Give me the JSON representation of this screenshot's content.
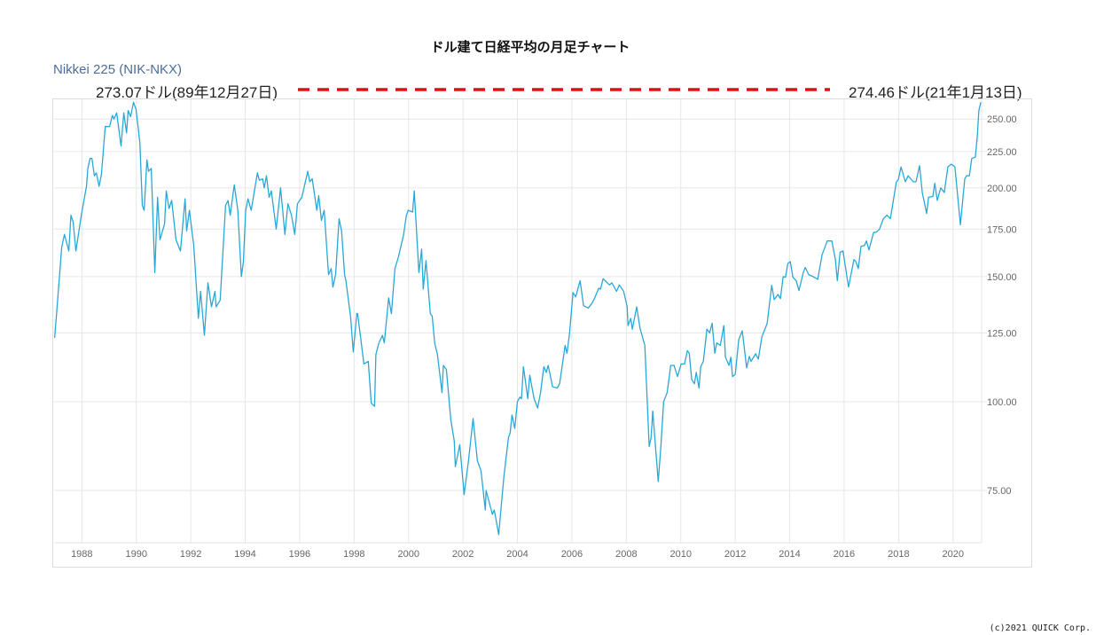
{
  "chart_data": {
    "type": "line",
    "title": "ドル建て日経平均の月足チャート",
    "series_label": "Nikkei 225 (NIK-NKX)",
    "y_scale": "log",
    "ylim": [
      63.3,
      266.5
    ],
    "xlim": [
      1986.98,
      2021.05
    ],
    "grid": true,
    "line_color": "#29a8d8",
    "reference_line_color": "#dd1111",
    "x_ticks": [
      "1988",
      "1990",
      "1992",
      "1994",
      "1996",
      "1998",
      "2000",
      "2002",
      "2004",
      "2006",
      "2008",
      "2010",
      "2012",
      "2014",
      "2016",
      "2018",
      "2020"
    ],
    "x_tick_values": [
      1988,
      1990,
      1992,
      1994,
      1996,
      1998,
      2000,
      2002,
      2004,
      2006,
      2008,
      2010,
      2012,
      2014,
      2016,
      2018,
      2020
    ],
    "y_ticks": [
      "75.00",
      "100.00",
      "125.00",
      "150.00",
      "175.00",
      "200.00",
      "225.00",
      "250.00"
    ],
    "y_tick_values": [
      75,
      100,
      125,
      150,
      175,
      200,
      225,
      250
    ],
    "annotations": {
      "left": "273.07ドル(89年12月27日)",
      "right": "274.46ドル(21年1月13日)"
    },
    "series": [
      {
        "name": "Nikkei 225 (NIK-NKX)",
        "points": [
          [
            1987.0,
            123
          ],
          [
            1987.07,
            133
          ],
          [
            1987.26,
            165
          ],
          [
            1987.36,
            172
          ],
          [
            1987.52,
            163
          ],
          [
            1987.6,
            183
          ],
          [
            1987.68,
            179
          ],
          [
            1987.78,
            163
          ],
          [
            1987.98,
            183
          ],
          [
            1988.17,
            201
          ],
          [
            1988.22,
            213
          ],
          [
            1988.3,
            220
          ],
          [
            1988.37,
            220
          ],
          [
            1988.46,
            208
          ],
          [
            1988.53,
            210
          ],
          [
            1988.63,
            201
          ],
          [
            1988.72,
            209
          ],
          [
            1988.86,
            244
          ],
          [
            1989.02,
            244
          ],
          [
            1989.12,
            253
          ],
          [
            1989.18,
            250
          ],
          [
            1989.28,
            255
          ],
          [
            1989.44,
            229
          ],
          [
            1989.54,
            255
          ],
          [
            1989.64,
            239
          ],
          [
            1989.7,
            257
          ],
          [
            1989.79,
            252
          ],
          [
            1989.9,
            264
          ],
          [
            1989.99,
            258
          ],
          [
            1990.13,
            232
          ],
          [
            1990.22,
            189
          ],
          [
            1990.29,
            186
          ],
          [
            1990.39,
            219
          ],
          [
            1990.45,
            211
          ],
          [
            1990.55,
            213
          ],
          [
            1990.68,
            152
          ],
          [
            1990.78,
            194
          ],
          [
            1990.87,
            169
          ],
          [
            1991.04,
            178
          ],
          [
            1991.1,
            198
          ],
          [
            1991.2,
            187
          ],
          [
            1991.3,
            192
          ],
          [
            1991.46,
            169
          ],
          [
            1991.62,
            163
          ],
          [
            1991.79,
            193
          ],
          [
            1991.85,
            174
          ],
          [
            1991.95,
            186
          ],
          [
            1992.11,
            166
          ],
          [
            1992.28,
            131
          ],
          [
            1992.36,
            143
          ],
          [
            1992.5,
            124
          ],
          [
            1992.63,
            147
          ],
          [
            1992.76,
            136
          ],
          [
            1992.89,
            143
          ],
          [
            1992.93,
            136
          ],
          [
            1993.08,
            139
          ],
          [
            1993.28,
            189
          ],
          [
            1993.37,
            192
          ],
          [
            1993.45,
            183
          ],
          [
            1993.6,
            202
          ],
          [
            1993.73,
            186
          ],
          [
            1993.86,
            150
          ],
          [
            1993.93,
            157
          ],
          [
            1994.02,
            186
          ],
          [
            1994.1,
            193
          ],
          [
            1994.22,
            186
          ],
          [
            1994.45,
            210
          ],
          [
            1994.52,
            205
          ],
          [
            1994.64,
            206
          ],
          [
            1994.7,
            200
          ],
          [
            1994.78,
            208
          ],
          [
            1994.88,
            194
          ],
          [
            1994.96,
            198
          ],
          [
            1995.14,
            175
          ],
          [
            1995.3,
            200
          ],
          [
            1995.46,
            172
          ],
          [
            1995.57,
            190
          ],
          [
            1995.7,
            183
          ],
          [
            1995.82,
            172
          ],
          [
            1995.92,
            190
          ],
          [
            1996.08,
            194
          ],
          [
            1996.3,
            211
          ],
          [
            1996.37,
            204
          ],
          [
            1996.46,
            206
          ],
          [
            1996.63,
            186
          ],
          [
            1996.7,
            195
          ],
          [
            1996.8,
            180
          ],
          [
            1996.9,
            186
          ],
          [
            1997.06,
            151
          ],
          [
            1997.16,
            154
          ],
          [
            1997.22,
            145
          ],
          [
            1997.32,
            151
          ],
          [
            1997.45,
            181
          ],
          [
            1997.54,
            174
          ],
          [
            1997.65,
            151
          ],
          [
            1997.7,
            148
          ],
          [
            1997.87,
            132
          ],
          [
            1997.97,
            117.5
          ],
          [
            1998.1,
            133
          ],
          [
            1998.13,
            133
          ],
          [
            1998.36,
            113
          ],
          [
            1998.52,
            114
          ],
          [
            1998.63,
            99.5
          ],
          [
            1998.75,
            98.5
          ],
          [
            1998.8,
            116.5
          ],
          [
            1998.91,
            121
          ],
          [
            1999.04,
            124
          ],
          [
            1999.11,
            121
          ],
          [
            1999.27,
            140
          ],
          [
            1999.37,
            133
          ],
          [
            1999.5,
            154
          ],
          [
            1999.63,
            160
          ],
          [
            1999.82,
            172
          ],
          [
            1999.92,
            183
          ],
          [
            1999.99,
            186
          ],
          [
            2000.15,
            185
          ],
          [
            2000.21,
            198
          ],
          [
            2000.38,
            152
          ],
          [
            2000.48,
            164
          ],
          [
            2000.54,
            144
          ],
          [
            2000.64,
            158
          ],
          [
            2000.8,
            133
          ],
          [
            2000.87,
            132
          ],
          [
            2000.96,
            121
          ],
          [
            2001.06,
            116.5
          ],
          [
            2001.23,
            103
          ],
          [
            2001.28,
            112.5
          ],
          [
            2001.39,
            111
          ],
          [
            2001.55,
            94.5
          ],
          [
            2001.68,
            88
          ],
          [
            2001.72,
            81
          ],
          [
            2001.88,
            87
          ],
          [
            2002.04,
            74
          ],
          [
            2002.2,
            82.5
          ],
          [
            2002.37,
            94.7
          ],
          [
            2002.53,
            82.5
          ],
          [
            2002.66,
            80
          ],
          [
            2002.82,
            70.4
          ],
          [
            2002.85,
            75
          ],
          [
            2003.08,
            69.4
          ],
          [
            2003.15,
            70.4
          ],
          [
            2003.31,
            65
          ],
          [
            2003.5,
            78.3
          ],
          [
            2003.67,
            89
          ],
          [
            2003.73,
            90.4
          ],
          [
            2003.8,
            95.8
          ],
          [
            2003.9,
            91.7
          ],
          [
            2004.0,
            100
          ],
          [
            2004.09,
            101.5
          ],
          [
            2004.15,
            101
          ],
          [
            2004.22,
            112
          ],
          [
            2004.38,
            101
          ],
          [
            2004.45,
            109
          ],
          [
            2004.61,
            101
          ],
          [
            2004.74,
            98
          ],
          [
            2004.85,
            103
          ],
          [
            2004.97,
            112
          ],
          [
            2005.06,
            110
          ],
          [
            2005.13,
            112.5
          ],
          [
            2005.29,
            105
          ],
          [
            2005.46,
            104.5
          ],
          [
            2005.55,
            106
          ],
          [
            2005.75,
            120
          ],
          [
            2005.82,
            117
          ],
          [
            2005.91,
            124.5
          ],
          [
            2006.04,
            142.5
          ],
          [
            2006.14,
            140.5
          ],
          [
            2006.3,
            148
          ],
          [
            2006.43,
            136.5
          ],
          [
            2006.6,
            135.5
          ],
          [
            2006.73,
            137.5
          ],
          [
            2006.82,
            139.5
          ],
          [
            2006.99,
            144.5
          ],
          [
            2007.05,
            144
          ],
          [
            2007.15,
            149
          ],
          [
            2007.38,
            146
          ],
          [
            2007.47,
            147
          ],
          [
            2007.64,
            143
          ],
          [
            2007.74,
            146
          ],
          [
            2007.9,
            143
          ],
          [
            2008.03,
            136
          ],
          [
            2008.06,
            128
          ],
          [
            2008.16,
            131
          ],
          [
            2008.22,
            126.5
          ],
          [
            2008.38,
            136
          ],
          [
            2008.5,
            127
          ],
          [
            2008.68,
            120
          ],
          [
            2008.84,
            86.5
          ],
          [
            2008.91,
            89
          ],
          [
            2008.97,
            97
          ],
          [
            2009.17,
            77.2
          ],
          [
            2009.27,
            86.5
          ],
          [
            2009.37,
            100
          ],
          [
            2009.5,
            103
          ],
          [
            2009.63,
            112.5
          ],
          [
            2009.75,
            112.5
          ],
          [
            2009.88,
            108.5
          ],
          [
            2010.01,
            113
          ],
          [
            2010.14,
            113
          ],
          [
            2010.24,
            118
          ],
          [
            2010.31,
            117
          ],
          [
            2010.4,
            107.5
          ],
          [
            2010.5,
            106
          ],
          [
            2010.57,
            110
          ],
          [
            2010.67,
            104.5
          ],
          [
            2010.73,
            112
          ],
          [
            2010.83,
            114
          ],
          [
            2010.96,
            126.5
          ],
          [
            2011.06,
            125
          ],
          [
            2011.15,
            129
          ],
          [
            2011.25,
            117
          ],
          [
            2011.32,
            121
          ],
          [
            2011.45,
            120
          ],
          [
            2011.58,
            128
          ],
          [
            2011.64,
            115.5
          ],
          [
            2011.77,
            112.5
          ],
          [
            2011.84,
            115.5
          ],
          [
            2011.9,
            108.5
          ],
          [
            2012.0,
            109.3
          ],
          [
            2012.13,
            122.3
          ],
          [
            2012.26,
            125.8
          ],
          [
            2012.42,
            111.6
          ],
          [
            2012.52,
            115.8
          ],
          [
            2012.58,
            114
          ],
          [
            2012.75,
            116.8
          ],
          [
            2012.85,
            114.8
          ],
          [
            2012.98,
            123.4
          ],
          [
            2013.17,
            128.8
          ],
          [
            2013.34,
            145.8
          ],
          [
            2013.43,
            139.2
          ],
          [
            2013.57,
            141.6
          ],
          [
            2013.66,
            139.7
          ],
          [
            2013.76,
            150
          ],
          [
            2013.85,
            149.7
          ],
          [
            2013.93,
            156.5
          ],
          [
            2014.02,
            157.5
          ],
          [
            2014.12,
            149.7
          ],
          [
            2014.24,
            148
          ],
          [
            2014.34,
            143.4
          ],
          [
            2014.5,
            152
          ],
          [
            2014.57,
            154.5
          ],
          [
            2014.7,
            151
          ],
          [
            2014.86,
            150
          ],
          [
            2015.03,
            148.7
          ],
          [
            2015.19,
            161
          ],
          [
            2015.38,
            168.4
          ],
          [
            2015.55,
            168.4
          ],
          [
            2015.68,
            158.5
          ],
          [
            2015.75,
            148
          ],
          [
            2015.85,
            162.3
          ],
          [
            2015.96,
            163
          ],
          [
            2016.16,
            145
          ],
          [
            2016.36,
            158.5
          ],
          [
            2016.43,
            157.5
          ],
          [
            2016.52,
            154
          ],
          [
            2016.62,
            165.5
          ],
          [
            2016.75,
            166
          ],
          [
            2016.82,
            168.4
          ],
          [
            2016.91,
            163.5
          ],
          [
            2017.08,
            173
          ],
          [
            2017.18,
            173.3
          ],
          [
            2017.3,
            175
          ],
          [
            2017.44,
            181
          ],
          [
            2017.57,
            183
          ],
          [
            2017.7,
            181
          ],
          [
            2017.92,
            204
          ],
          [
            2017.99,
            205.5
          ],
          [
            2018.09,
            214
          ],
          [
            2018.25,
            204
          ],
          [
            2018.35,
            208
          ],
          [
            2018.54,
            204
          ],
          [
            2018.64,
            204
          ],
          [
            2018.77,
            215
          ],
          [
            2018.87,
            197
          ],
          [
            2019.03,
            184
          ],
          [
            2019.1,
            194
          ],
          [
            2019.26,
            194.5
          ],
          [
            2019.33,
            203
          ],
          [
            2019.42,
            192
          ],
          [
            2019.55,
            200
          ],
          [
            2019.68,
            197
          ],
          [
            2019.81,
            214
          ],
          [
            2019.94,
            216
          ],
          [
            2020.07,
            214
          ],
          [
            2020.27,
            177.5
          ],
          [
            2020.43,
            206
          ],
          [
            2020.5,
            208
          ],
          [
            2020.6,
            208
          ],
          [
            2020.69,
            220
          ],
          [
            2020.82,
            221
          ],
          [
            2020.89,
            236
          ],
          [
            2020.95,
            257
          ],
          [
            2021.02,
            264
          ]
        ]
      }
    ]
  },
  "copyright": "(c)2021 QUICK Corp."
}
